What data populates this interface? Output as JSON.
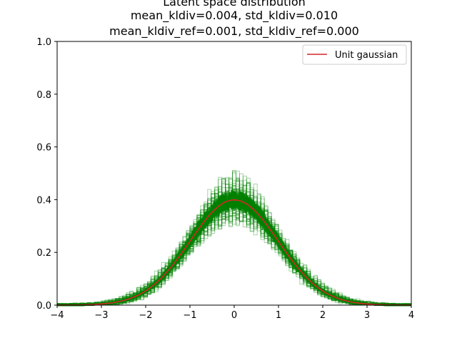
{
  "chart_data": {
    "type": "line",
    "title_lines": [
      "Latent space distribution",
      "mean_kldiv=0.004, std_kldiv=0.010",
      "mean_kldiv_ref=0.001, std_kldiv_ref=0.000"
    ],
    "xlabel": "",
    "ylabel": "",
    "xlim": [
      -4,
      4
    ],
    "ylim": [
      0,
      1.0
    ],
    "x_ticks": [
      "−4",
      "−3",
      "−2",
      "−1",
      "0",
      "1",
      "2",
      "3",
      "4"
    ],
    "y_ticks": [
      "0.0",
      "0.2",
      "0.4",
      "0.6",
      "0.8",
      "1.0"
    ],
    "grid": false,
    "legend_position": "top-right",
    "series": [
      {
        "name": "Unit gaussian",
        "color": "#d62728",
        "x": [
          -4.0,
          -3.5,
          -3.0,
          -2.5,
          -2.0,
          -1.5,
          -1.0,
          -0.5,
          0.0,
          0.5,
          1.0,
          1.5,
          2.0,
          2.5,
          3.0,
          3.5,
          4.0
        ],
        "y": [
          0.0001,
          0.0009,
          0.0044,
          0.0175,
          0.054,
          0.1295,
          0.242,
          0.3521,
          0.3989,
          0.3521,
          0.242,
          0.1295,
          0.054,
          0.0175,
          0.0044,
          0.0009,
          0.0001
        ]
      }
    ],
    "histograms": {
      "description_color": "#008000",
      "count_visible": "many",
      "peak_range": [
        0.36,
        0.54
      ],
      "bin_width": 0.08
    }
  }
}
